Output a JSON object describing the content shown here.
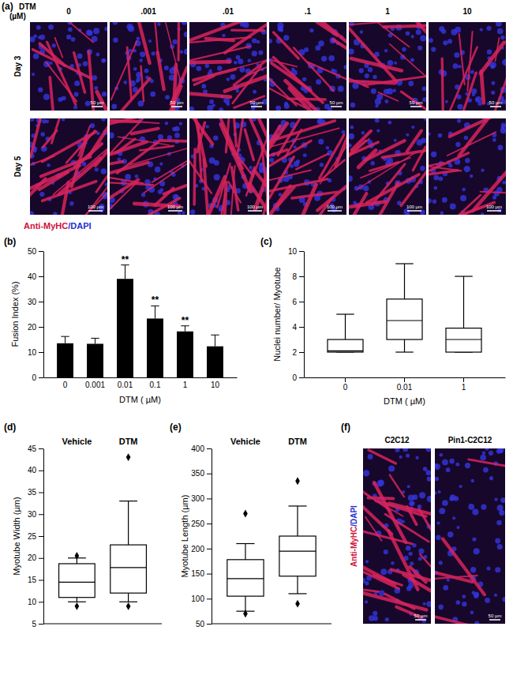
{
  "chart_data": [
    {
      "type": "bar",
      "title": "(b)",
      "x_label": "DTM ( µM)",
      "y_label": "Fusion Index (%)",
      "categories": [
        "0",
        "0.001",
        "0.01",
        "0.1",
        "1",
        "10"
      ],
      "values": [
        13.5,
        13.3,
        39,
        23.3,
        18.2,
        12.3
      ],
      "errors": [
        2.7,
        2.2,
        5.5,
        5,
        2.2,
        4.5
      ],
      "annotations": [
        null,
        null,
        "**",
        "**",
        "**",
        null
      ],
      "color": "#000000",
      "ylim": [
        0,
        50
      ],
      "yticks": [
        0,
        10,
        20,
        30,
        40,
        50
      ]
    },
    {
      "type": "box",
      "title": "(c)",
      "x_label": "DTM ( µM)",
      "y_label": "Nuclei number/ Myotube",
      "categories": [
        "0",
        "0.01",
        "1"
      ],
      "min": [
        2,
        2,
        2
      ],
      "q1": [
        2,
        3,
        2
      ],
      "median": [
        2.1,
        4.5,
        3
      ],
      "q3": [
        3,
        6.2,
        3.9
      ],
      "max": [
        5,
        9,
        8
      ],
      "color": "#000000",
      "ylim": [
        0,
        10
      ],
      "yticks": [
        0,
        2,
        4,
        6,
        8,
        10
      ]
    },
    {
      "type": "box",
      "title": "(d)",
      "y_label": "Myotube Width (µm)",
      "categories": [
        "Vehicle",
        "DTM"
      ],
      "min": [
        10,
        10
      ],
      "q1": [
        11,
        12
      ],
      "median": [
        14.5,
        17.8
      ],
      "q3": [
        18.7,
        23
      ],
      "max": [
        20,
        33
      ],
      "outliers": [
        [
          9,
          20.5
        ],
        [
          9,
          43
        ]
      ],
      "color": "#000000",
      "ylim": [
        5,
        45
      ],
      "yticks": [
        5,
        10,
        15,
        20,
        25,
        30,
        35,
        40,
        45
      ]
    },
    {
      "type": "box",
      "title": "(e)",
      "y_label": "Myotube Length (µm)",
      "categories": [
        "Vehicle",
        "DTM"
      ],
      "min": [
        75,
        110
      ],
      "q1": [
        105,
        145
      ],
      "median": [
        140,
        195
      ],
      "q3": [
        178,
        225
      ],
      "max": [
        210,
        285
      ],
      "outliers": [
        [
          70,
          270
        ],
        [
          90,
          335
        ]
      ],
      "color": "#000000",
      "ylim": [
        50,
        400
      ],
      "yticks": [
        50,
        100,
        150,
        200,
        250,
        300,
        350,
        400
      ]
    }
  ],
  "figure": {
    "a": {
      "label": "(a)",
      "header": [
        "DTM",
        "(µM)"
      ],
      "columns": [
        "0",
        ".001",
        ".01",
        ".1",
        "1",
        "10"
      ],
      "rows": [
        {
          "label": "Day 3",
          "scale_bar": "50 µm"
        },
        {
          "label": "Day 5",
          "scale_bar": "100 µm"
        }
      ],
      "stain": [
        "Anti-MyHC",
        "/DAPI"
      ]
    },
    "f": {
      "label": "(f)",
      "columns": [
        "C2C12",
        "Pin1-C2C12"
      ],
      "scale_bar": "50 µm",
      "stain": [
        "Anti-MyHC",
        "/DAPI"
      ]
    }
  }
}
